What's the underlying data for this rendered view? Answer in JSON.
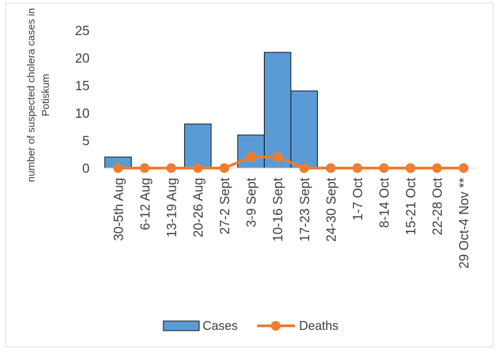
{
  "chart_data": {
    "type": "bar",
    "categories": [
      "30-5th Aug",
      "6-12 Aug",
      "13-19 Aug",
      "20-26 Aug",
      "27-2 Sept",
      "3-9 Sept",
      "10-16 Sept",
      "17-23 Sept",
      "24-30 Sept",
      "1-7 Oct",
      "8-14 Oct",
      "15-21 Oct",
      "22-28 Oct",
      "29 Oct-4 Nov **"
    ],
    "series": [
      {
        "name": "Cases",
        "type": "bar",
        "color": "#5b9bd5",
        "values": [
          2,
          0,
          0,
          8,
          0,
          6,
          21,
          14,
          0,
          0,
          0,
          0,
          0,
          0
        ]
      },
      {
        "name": "Deaths",
        "type": "line",
        "color": "#ed7d31",
        "values": [
          0,
          0,
          0,
          0,
          0,
          2,
          2,
          0,
          0,
          0,
          0,
          0,
          0,
          0
        ]
      }
    ],
    "ylabel": [
      "number of suspected cholera cases in",
      "Potiskum"
    ],
    "ylim": [
      0,
      25
    ],
    "yticks": [
      0,
      5,
      10,
      15,
      20,
      25
    ],
    "grid": false,
    "legend": "bottom"
  }
}
